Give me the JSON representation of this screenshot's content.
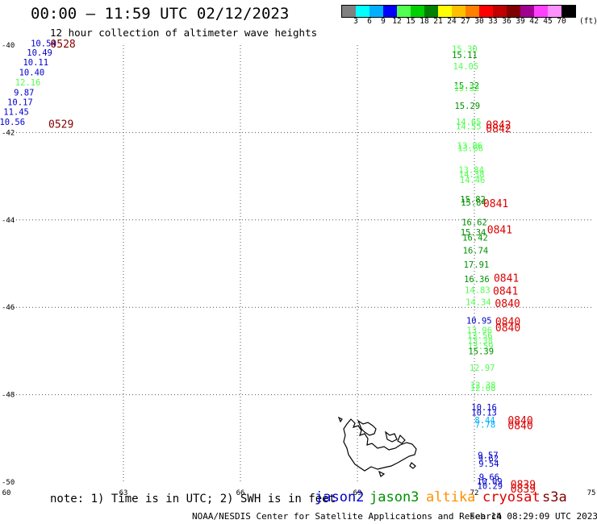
{
  "header": {
    "title": "00:00 — 11:59 UTC 02/12/2023",
    "subtitle": "12 hour collection of altimeter wave heights"
  },
  "legend": {
    "colors": [
      "#808080",
      "#00ffff",
      "#00b0ff",
      "#0000ff",
      "#50ff50",
      "#00d000",
      "#008000",
      "#ffff00",
      "#ffc000",
      "#ff8000",
      "#ff0000",
      "#c00000",
      "#800000",
      "#a00090",
      "#ff40ff",
      "#ff90ff",
      "#000000"
    ],
    "labels": [
      "3",
      "6",
      "9",
      "12",
      "15",
      "18",
      "21",
      "24",
      "27",
      "30",
      "33",
      "36",
      "39",
      "42",
      "45",
      "70"
    ],
    "unit": "(ft)"
  },
  "axes": {
    "lon_ticks": [
      "60",
      "63",
      "66",
      "69",
      "72",
      "75"
    ],
    "lat_ticks": [
      "-40",
      "-42",
      "-44",
      "-46",
      "-48",
      "-50"
    ]
  },
  "footer": {
    "note": "note: 1) Time is in UTC; 2) SWH is in feet",
    "satellites": [
      {
        "name": "jason2",
        "color": "#0000cc"
      },
      {
        "name": "jason3",
        "color": "#009000"
      },
      {
        "name": "altika",
        "color": "#ff9000"
      },
      {
        "name": "cryosat",
        "color": "#dd0000"
      },
      {
        "name": "s3a",
        "color": "#800000"
      }
    ],
    "credit": "NOAA/NESDIS Center for Satellite Applications and Research",
    "timestamp": "Feb 14 08:29:09 UTC 2023"
  },
  "map_data": {
    "lon_range": [
      60,
      75
    ],
    "lat_range": [
      -50,
      -40
    ],
    "track_west": [
      {
        "lon": 60.95,
        "lat": -39.95,
        "v": "10.54",
        "c": "#0000cc"
      },
      {
        "lon": 60.85,
        "lat": -40.17,
        "v": "10.49",
        "c": "#0000cc"
      },
      {
        "lon": 60.75,
        "lat": -40.39,
        "v": "10.11",
        "c": "#0000cc"
      },
      {
        "lon": 60.65,
        "lat": -40.62,
        "v": "10.40",
        "c": "#0000cc"
      },
      {
        "lon": 60.55,
        "lat": -40.85,
        "v": "12.16",
        "c": "#50ff50"
      },
      {
        "lon": 60.45,
        "lat": -41.08,
        "v": "9.87",
        "c": "#0000cc"
      },
      {
        "lon": 60.35,
        "lat": -41.3,
        "v": "10.17",
        "c": "#0000cc"
      },
      {
        "lon": 60.25,
        "lat": -41.52,
        "v": "11.45",
        "c": "#0000cc"
      },
      {
        "lon": 60.15,
        "lat": -41.75,
        "v": "10.56",
        "c": "#0000cc"
      }
    ],
    "track_east": [
      {
        "lon": 71.75,
        "lat": -40.08,
        "v": "15.30",
        "c": "#50ff50"
      },
      {
        "lon": 71.75,
        "lat": -40.22,
        "v": "15.11",
        "c": "#009000"
      },
      {
        "lon": 71.78,
        "lat": -40.48,
        "v": "14.05",
        "c": "#50ff50"
      },
      {
        "lon": 71.8,
        "lat": -40.92,
        "v": "15.32",
        "c": "#009000"
      },
      {
        "lon": 71.8,
        "lat": -40.98,
        "v": "15.32",
        "c": "#50ff50"
      },
      {
        "lon": 71.82,
        "lat": -41.38,
        "v": "15.29",
        "c": "#009000"
      },
      {
        "lon": 71.85,
        "lat": -41.75,
        "v": "14.65",
        "c": "#50ff50"
      },
      {
        "lon": 71.85,
        "lat": -41.85,
        "v": "14.55",
        "c": "#50ff50"
      },
      {
        "lon": 71.88,
        "lat": -42.3,
        "v": "13.86",
        "c": "#50ff50"
      },
      {
        "lon": 71.9,
        "lat": -42.35,
        "v": "13.66",
        "c": "#50ff50"
      },
      {
        "lon": 71.92,
        "lat": -42.85,
        "v": "13.84",
        "c": "#50ff50"
      },
      {
        "lon": 71.93,
        "lat": -42.95,
        "v": "14.38",
        "c": "#50ff50"
      },
      {
        "lon": 71.95,
        "lat": -43.08,
        "v": "14.46",
        "c": "#50ff50"
      },
      {
        "lon": 71.96,
        "lat": -43.52,
        "v": "15.82",
        "c": "#009000"
      },
      {
        "lon": 71.98,
        "lat": -43.6,
        "v": "15.84",
        "c": "#009000"
      },
      {
        "lon": 72.0,
        "lat": -44.05,
        "v": "16.62",
        "c": "#009000"
      },
      {
        "lon": 71.97,
        "lat": -44.28,
        "v": "15.34",
        "c": "#009000"
      },
      {
        "lon": 72.02,
        "lat": -44.4,
        "v": "16.42",
        "c": "#009000"
      },
      {
        "lon": 72.03,
        "lat": -44.7,
        "v": "16.74",
        "c": "#009000"
      },
      {
        "lon": 72.05,
        "lat": -45.02,
        "v": "17.91",
        "c": "#009000"
      },
      {
        "lon": 72.06,
        "lat": -45.35,
        "v": "16.36",
        "c": "#009000"
      },
      {
        "lon": 72.08,
        "lat": -45.6,
        "v": "14.83",
        "c": "#50ff50"
      },
      {
        "lon": 72.1,
        "lat": -45.88,
        "v": "14.34",
        "c": "#50ff50"
      },
      {
        "lon": 72.12,
        "lat": -46.3,
        "v": "10.95",
        "c": "#0000cc"
      },
      {
        "lon": 72.13,
        "lat": -46.52,
        "v": "13.96",
        "c": "#50ff50"
      },
      {
        "lon": 72.14,
        "lat": -46.64,
        "v": "13.56",
        "c": "#50ff50"
      },
      {
        "lon": 72.15,
        "lat": -46.76,
        "v": "13.38",
        "c": "#50ff50"
      },
      {
        "lon": 72.16,
        "lat": -46.88,
        "v": "13.59",
        "c": "#50ff50"
      },
      {
        "lon": 72.17,
        "lat": -47.0,
        "v": "15.39",
        "c": "#009000"
      },
      {
        "lon": 72.2,
        "lat": -47.38,
        "v": "12.97",
        "c": "#50ff50"
      },
      {
        "lon": 72.22,
        "lat": -47.78,
        "v": "12.38",
        "c": "#50ff50"
      },
      {
        "lon": 72.22,
        "lat": -47.84,
        "v": "12.08",
        "c": "#50ff50"
      },
      {
        "lon": 72.25,
        "lat": -48.28,
        "v": "10.16",
        "c": "#0000cc"
      },
      {
        "lon": 72.25,
        "lat": -48.4,
        "v": "10.13",
        "c": "#0000cc"
      },
      {
        "lon": 72.27,
        "lat": -48.58,
        "v": "8.44",
        "c": "#00b0ff"
      },
      {
        "lon": 72.28,
        "lat": -48.68,
        "v": "7.78",
        "c": "#00b0ff"
      },
      {
        "lon": 72.35,
        "lat": -49.38,
        "v": "9.57",
        "c": "#0000cc"
      },
      {
        "lon": 72.36,
        "lat": -49.46,
        "v": "9.62",
        "c": "#0000cc"
      },
      {
        "lon": 72.37,
        "lat": -49.58,
        "v": "9.54",
        "c": "#0000cc"
      },
      {
        "lon": 72.38,
        "lat": -49.88,
        "v": "9.66",
        "c": "#0000cc"
      },
      {
        "lon": 72.39,
        "lat": -49.98,
        "v": "10.09",
        "c": "#0000cc"
      },
      {
        "lon": 72.4,
        "lat": -50.08,
        "v": "10.29",
        "c": "#0000cc"
      }
    ],
    "time_labels": [
      {
        "lon": 61.45,
        "lat": -39.96,
        "t": "0528",
        "c": "#800000"
      },
      {
        "lon": 61.4,
        "lat": -41.8,
        "t": "0529",
        "c": "#800000"
      },
      {
        "lon": 72.62,
        "lat": -41.82,
        "t": "0842",
        "c": "#dd0000"
      },
      {
        "lon": 72.62,
        "lat": -41.9,
        "t": "0842",
        "c": "#dd0000"
      },
      {
        "lon": 72.55,
        "lat": -43.62,
        "t": "0841",
        "c": "#dd0000"
      },
      {
        "lon": 72.65,
        "lat": -44.22,
        "t": "0841",
        "c": "#dd0000"
      },
      {
        "lon": 72.82,
        "lat": -45.32,
        "t": "0841",
        "c": "#dd0000"
      },
      {
        "lon": 72.8,
        "lat": -45.62,
        "t": "0841",
        "c": "#dd0000"
      },
      {
        "lon": 72.85,
        "lat": -45.9,
        "t": "0840",
        "c": "#dd0000"
      },
      {
        "lon": 72.86,
        "lat": -46.32,
        "t": "0840",
        "c": "#dd0000"
      },
      {
        "lon": 72.86,
        "lat": -46.46,
        "t": "0840",
        "c": "#dd0000"
      },
      {
        "lon": 73.18,
        "lat": -48.58,
        "t": "0840",
        "c": "#dd0000"
      },
      {
        "lon": 73.18,
        "lat": -48.7,
        "t": "0840",
        "c": "#dd0000"
      },
      {
        "lon": 73.25,
        "lat": -50.05,
        "t": "0839",
        "c": "#dd0000"
      },
      {
        "lon": 73.25,
        "lat": -50.15,
        "t": "0839",
        "c": "#dd0000"
      }
    ]
  }
}
